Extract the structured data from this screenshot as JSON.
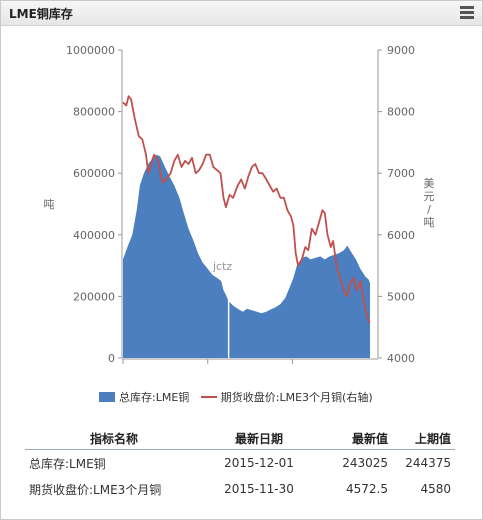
{
  "panel": {
    "title": "LME铜库存",
    "menu_icon": "hamburger-menu-icon"
  },
  "watermark": "jctz",
  "legend": {
    "inventory": "总库存:LME铜",
    "price": "期货收盘价:LME3个月铜(右轴)"
  },
  "chart_data": {
    "type": "area+line",
    "x_ticks": [
      "2013-01-01",
      "2014-01-01",
      "2015-01-01"
    ],
    "x_range": [
      "2013-01-01",
      "2015-12-31"
    ],
    "left_axis": {
      "label": "吨",
      "range": [
        0,
        1000000
      ],
      "ticks": [
        "0",
        "200000",
        "400000",
        "600000",
        "800000",
        "1000000"
      ]
    },
    "right_axis": {
      "label": "美元/吨",
      "range": [
        4000,
        9000
      ],
      "ticks": [
        "4000",
        "5000",
        "6000",
        "7000",
        "8000",
        "9000"
      ]
    },
    "series": [
      {
        "name": "总库存:LME铜",
        "type": "area",
        "color": "#4b7fbf",
        "points": [
          [
            "2013-01-01",
            320000
          ],
          [
            "2013-01-20",
            360000
          ],
          [
            "2013-02-10",
            400000
          ],
          [
            "2013-03-01",
            480000
          ],
          [
            "2013-03-15",
            560000
          ],
          [
            "2013-04-01",
            600000
          ],
          [
            "2013-04-20",
            630000
          ],
          [
            "2013-05-10",
            650000
          ],
          [
            "2013-05-25",
            660000
          ],
          [
            "2013-06-10",
            655000
          ],
          [
            "2013-07-01",
            620000
          ],
          [
            "2013-07-20",
            590000
          ],
          [
            "2013-08-10",
            560000
          ],
          [
            "2013-09-01",
            520000
          ],
          [
            "2013-09-20",
            470000
          ],
          [
            "2013-10-10",
            420000
          ],
          [
            "2013-11-01",
            380000
          ],
          [
            "2013-11-20",
            340000
          ],
          [
            "2013-12-10",
            310000
          ],
          [
            "2014-01-01",
            290000
          ],
          [
            "2014-01-20",
            270000
          ],
          [
            "2014-02-10",
            260000
          ],
          [
            "2014-02-28",
            250000
          ],
          [
            "2014-03-10",
            220000
          ],
          [
            "2014-03-20",
            205000
          ],
          [
            "2014-04-01",
            185000
          ],
          [
            "2014-04-20",
            170000
          ],
          [
            "2014-05-10",
            160000
          ],
          [
            "2014-06-01",
            150000
          ],
          [
            "2014-06-20",
            160000
          ],
          [
            "2014-07-10",
            155000
          ],
          [
            "2014-08-01",
            150000
          ],
          [
            "2014-08-20",
            145000
          ],
          [
            "2014-09-10",
            150000
          ],
          [
            "2014-10-01",
            158000
          ],
          [
            "2014-10-20",
            165000
          ],
          [
            "2014-11-10",
            175000
          ],
          [
            "2014-12-01",
            195000
          ],
          [
            "2014-12-20",
            230000
          ],
          [
            "2015-01-05",
            260000
          ],
          [
            "2015-01-20",
            300000
          ],
          [
            "2015-02-10",
            325000
          ],
          [
            "2015-03-01",
            330000
          ],
          [
            "2015-03-20",
            320000
          ],
          [
            "2015-04-10",
            325000
          ],
          [
            "2015-05-01",
            330000
          ],
          [
            "2015-05-20",
            320000
          ],
          [
            "2015-06-10",
            330000
          ],
          [
            "2015-07-01",
            335000
          ],
          [
            "2015-07-20",
            340000
          ],
          [
            "2015-08-10",
            350000
          ],
          [
            "2015-08-25",
            365000
          ],
          [
            "2015-09-10",
            345000
          ],
          [
            "2015-10-01",
            320000
          ],
          [
            "2015-10-20",
            290000
          ],
          [
            "2015-11-10",
            265000
          ],
          [
            "2015-11-25",
            255000
          ],
          [
            "2015-12-01",
            243025
          ]
        ]
      },
      {
        "name": "期货收盘价:LME3个月铜",
        "type": "line",
        "axis": "right",
        "color": "#c0504d",
        "points": [
          [
            "2013-01-01",
            8150
          ],
          [
            "2013-01-15",
            8100
          ],
          [
            "2013-01-25",
            8250
          ],
          [
            "2013-02-05",
            8200
          ],
          [
            "2013-02-20",
            7900
          ],
          [
            "2013-03-10",
            7600
          ],
          [
            "2013-03-25",
            7550
          ],
          [
            "2013-04-10",
            7300
          ],
          [
            "2013-04-20",
            7000
          ],
          [
            "2013-05-01",
            7150
          ],
          [
            "2013-05-15",
            7300
          ],
          [
            "2013-06-01",
            7200
          ],
          [
            "2013-06-20",
            6850
          ],
          [
            "2013-07-05",
            6900
          ],
          [
            "2013-07-25",
            7000
          ],
          [
            "2013-08-10",
            7200
          ],
          [
            "2013-08-25",
            7300
          ],
          [
            "2013-09-10",
            7100
          ],
          [
            "2013-09-25",
            7200
          ],
          [
            "2013-10-10",
            7150
          ],
          [
            "2013-10-25",
            7250
          ],
          [
            "2013-11-10",
            7000
          ],
          [
            "2013-11-25",
            7050
          ],
          [
            "2013-12-10",
            7150
          ],
          [
            "2013-12-25",
            7300
          ],
          [
            "2014-01-10",
            7300
          ],
          [
            "2014-01-25",
            7100
          ],
          [
            "2014-02-10",
            7050
          ],
          [
            "2014-02-25",
            7000
          ],
          [
            "2014-03-10",
            6600
          ],
          [
            "2014-03-20",
            6450
          ],
          [
            "2014-04-05",
            6650
          ],
          [
            "2014-04-20",
            6600
          ],
          [
            "2014-05-10",
            6800
          ],
          [
            "2014-05-25",
            6900
          ],
          [
            "2014-06-10",
            6750
          ],
          [
            "2014-06-25",
            6950
          ],
          [
            "2014-07-10",
            7100
          ],
          [
            "2014-07-25",
            7150
          ],
          [
            "2014-08-10",
            7000
          ],
          [
            "2014-08-25",
            7000
          ],
          [
            "2014-09-10",
            6900
          ],
          [
            "2014-09-25",
            6800
          ],
          [
            "2014-10-10",
            6700
          ],
          [
            "2014-10-25",
            6750
          ],
          [
            "2014-11-10",
            6600
          ],
          [
            "2014-11-25",
            6600
          ],
          [
            "2014-12-10",
            6400
          ],
          [
            "2014-12-25",
            6300
          ],
          [
            "2015-01-05",
            6150
          ],
          [
            "2015-01-15",
            5700
          ],
          [
            "2015-01-25",
            5500
          ],
          [
            "2015-02-10",
            5600
          ],
          [
            "2015-02-25",
            5800
          ],
          [
            "2015-03-10",
            5750
          ],
          [
            "2015-03-25",
            6100
          ],
          [
            "2015-04-10",
            6000
          ],
          [
            "2015-04-25",
            6200
          ],
          [
            "2015-05-10",
            6400
          ],
          [
            "2015-05-20",
            6350
          ],
          [
            "2015-06-01",
            6000
          ],
          [
            "2015-06-15",
            5800
          ],
          [
            "2015-06-25",
            5900
          ],
          [
            "2015-07-10",
            5500
          ],
          [
            "2015-07-25",
            5300
          ],
          [
            "2015-08-10",
            5100
          ],
          [
            "2015-08-25",
            5000
          ],
          [
            "2015-09-05",
            5200
          ],
          [
            "2015-09-20",
            5300
          ],
          [
            "2015-10-05",
            5100
          ],
          [
            "2015-10-20",
            5250
          ],
          [
            "2015-11-05",
            4900
          ],
          [
            "2015-11-20",
            4650
          ],
          [
            "2015-11-30",
            4572.5
          ]
        ]
      }
    ]
  },
  "table": {
    "headers": [
      "指标名称",
      "最新日期",
      "最新值",
      "上期值"
    ],
    "rows": [
      [
        "总库存:LME铜",
        "2015-12-01",
        "243025",
        "244375"
      ],
      [
        "期货收盘价:LME3个月铜",
        "2015-11-30",
        "4572.5",
        "4580"
      ]
    ]
  }
}
